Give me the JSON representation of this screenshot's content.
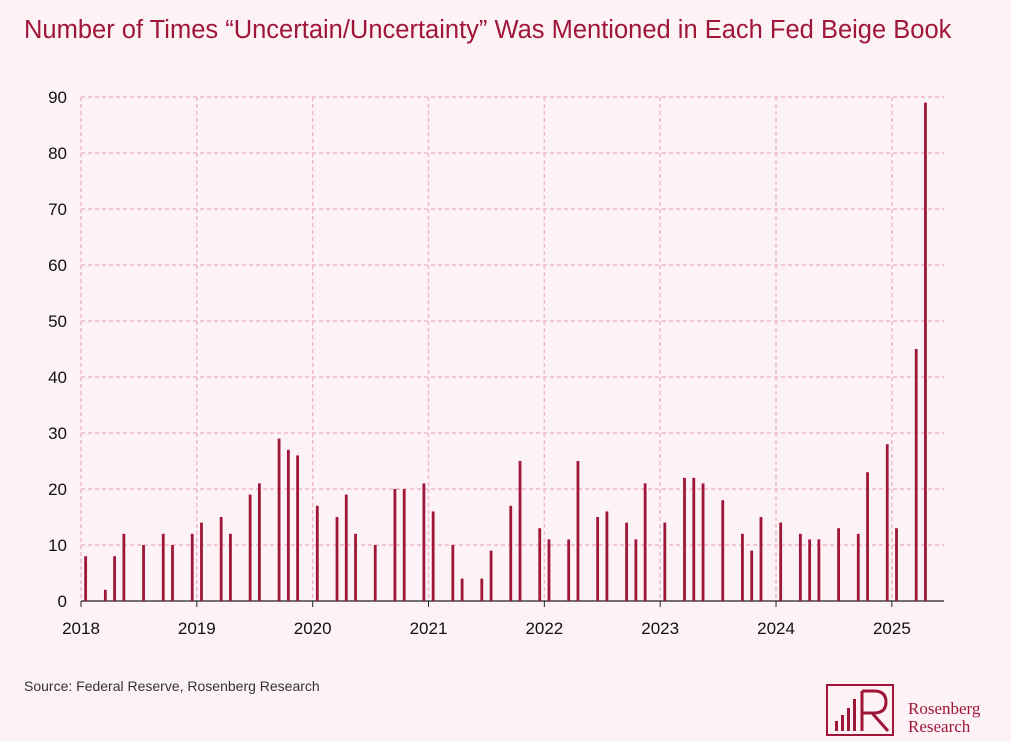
{
  "chart_data": {
    "type": "bar",
    "title": "Number of Times “Uncertain/Uncertainty” Was Mentioned in Each Fed Beige Book",
    "xlabel": "",
    "ylabel": "",
    "ylim": [
      0,
      90
    ],
    "yticks": [
      0,
      10,
      20,
      30,
      40,
      50,
      60,
      70,
      80,
      90
    ],
    "xlim": [
      2018.0,
      2025.45
    ],
    "xticks": [
      "2018",
      "2019",
      "2020",
      "2021",
      "2022",
      "2023",
      "2024",
      "2025"
    ],
    "grid": true,
    "x": [
      2018.04,
      2018.21,
      2018.29,
      2018.37,
      2018.54,
      2018.71,
      2018.79,
      2018.96,
      2019.04,
      2019.21,
      2019.29,
      2019.46,
      2019.54,
      2019.71,
      2019.79,
      2019.87,
      2020.04,
      2020.21,
      2020.29,
      2020.37,
      2020.54,
      2020.71,
      2020.79,
      2020.96,
      2021.04,
      2021.21,
      2021.29,
      2021.46,
      2021.54,
      2021.71,
      2021.79,
      2021.96,
      2022.04,
      2022.21,
      2022.29,
      2022.46,
      2022.54,
      2022.71,
      2022.79,
      2022.87,
      2023.04,
      2023.21,
      2023.29,
      2023.37,
      2023.54,
      2023.71,
      2023.79,
      2023.87,
      2024.04,
      2024.21,
      2024.29,
      2024.37,
      2024.54,
      2024.71,
      2024.79,
      2024.96,
      2025.04,
      2025.21,
      2025.29
    ],
    "values": [
      8,
      2,
      8,
      12,
      10,
      12,
      10,
      12,
      14,
      15,
      12,
      19,
      21,
      29,
      27,
      26,
      17,
      15,
      19,
      12,
      10,
      20,
      20,
      21,
      16,
      10,
      4,
      4,
      9,
      17,
      25,
      13,
      11,
      11,
      25,
      15,
      16,
      14,
      11,
      21,
      14,
      22,
      22,
      21,
      18,
      12,
      9,
      15,
      14,
      12,
      11,
      11,
      13,
      12,
      23,
      28,
      13,
      45,
      89
    ],
    "bar_color": "#a01638",
    "grid_color": "#f0b8cc"
  },
  "source": "Source: Federal Reserve, Rosenberg Research",
  "logo": {
    "line1": "Rosenberg",
    "line2": "Research",
    "monogram": "R"
  }
}
